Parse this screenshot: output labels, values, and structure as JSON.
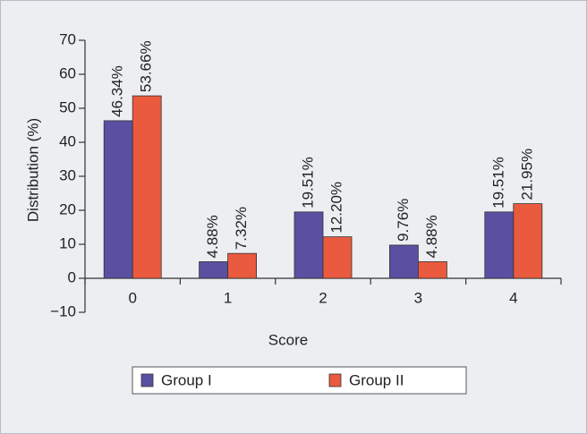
{
  "chart_data": {
    "type": "bar",
    "categories": [
      "0",
      "1",
      "2",
      "3",
      "4"
    ],
    "series": [
      {
        "name": "Group I",
        "color": "#5a50a2",
        "values": [
          46.34,
          4.88,
          19.51,
          9.76,
          19.51
        ],
        "value_labels": [
          "46.34%",
          "4.88%",
          "19.51%",
          "9.76%",
          "19.51%"
        ]
      },
      {
        "name": "Group II",
        "color": "#ea5a3e",
        "values": [
          53.66,
          7.32,
          12.2,
          4.88,
          21.95
        ],
        "value_labels": [
          "53.66%",
          "7.32%",
          "12.20%",
          "4.88%",
          "21.95%"
        ]
      }
    ],
    "ylim": [
      -10,
      70
    ],
    "yticks": [
      {
        "value": -10,
        "label": "−10"
      },
      0,
      10,
      20,
      30,
      40,
      50,
      60,
      70
    ],
    "xlabel": "Score",
    "ylabel": "Distribution (%)",
    "legend": "bottom"
  }
}
